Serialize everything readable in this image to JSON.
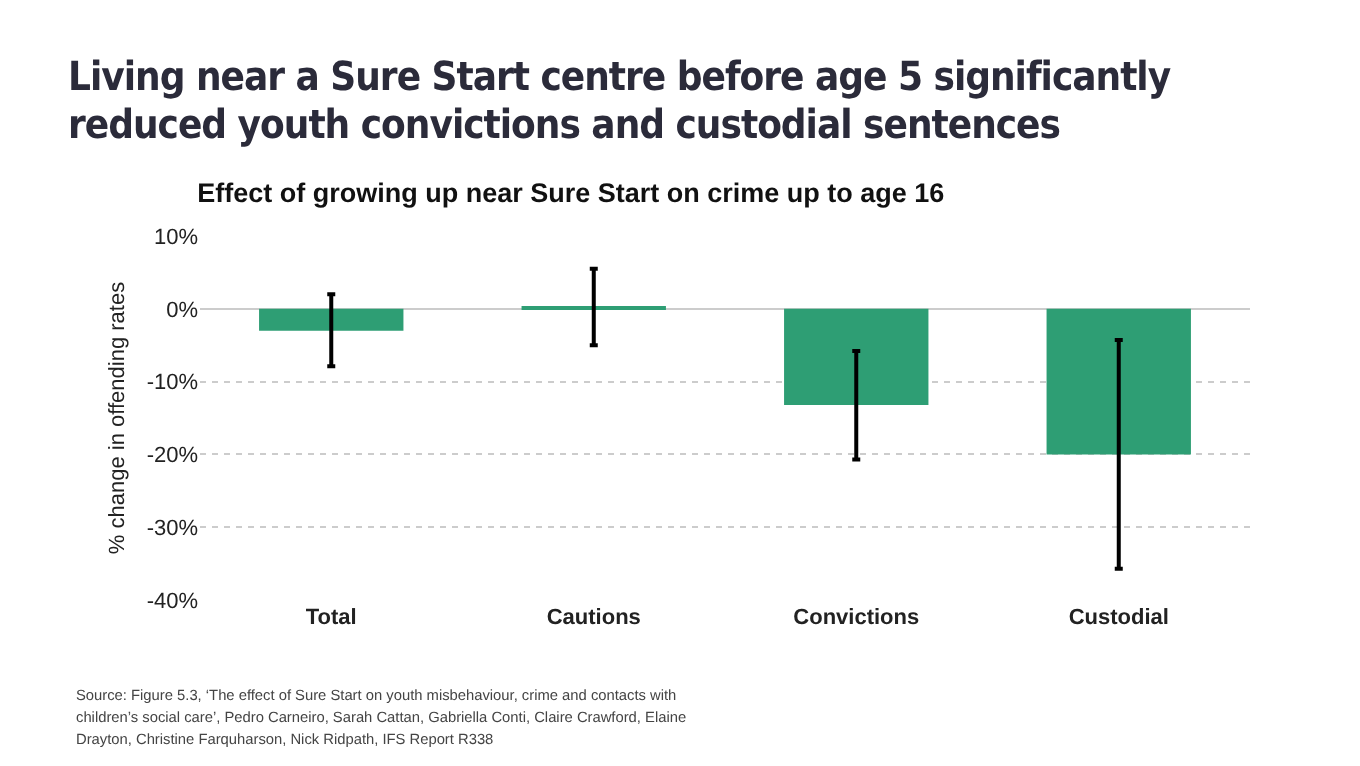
{
  "chart_data": {
    "type": "bar",
    "title": "Living near a Sure Start centre before age 5 significantly reduced youth convictions and custodial sentences",
    "subtitle": "Effect of growing up near Sure Start on crime up to age 16",
    "ylabel": "% change in offending rates",
    "categories": [
      "Total",
      "Cautions",
      "Convictions",
      "Custodial"
    ],
    "values": [
      -3.0,
      0.2,
      -13.2,
      -20.0
    ],
    "errors": [
      [
        -7.9,
        2.0
      ],
      [
        -5.0,
        5.5
      ],
      [
        -20.7,
        -5.8
      ],
      [
        -35.7,
        -4.3
      ]
    ],
    "color": "#2e9e74",
    "ylim": [
      -40,
      10
    ],
    "yticks": [
      {
        "value": -40,
        "label": "-40%"
      },
      {
        "value": -30,
        "label": "-30%"
      },
      {
        "value": -20,
        "label": "-20%"
      },
      {
        "value": -10,
        "label": "-10%"
      },
      {
        "value": 0,
        "label": "0%"
      },
      {
        "value": 10,
        "label": "10%"
      }
    ],
    "grid": "y",
    "annotations": [
      "Source: Figure 5.3, ‘The effect of Sure Start on youth misbehaviour, crime and contacts with children’s social care’, Pedro Carneiro, Sarah Cattan, Gabriella Conti, Claire Crawford, Elaine Drayton, Christine Farquharson, Nick Ridpath, IFS Report R338"
    ]
  }
}
